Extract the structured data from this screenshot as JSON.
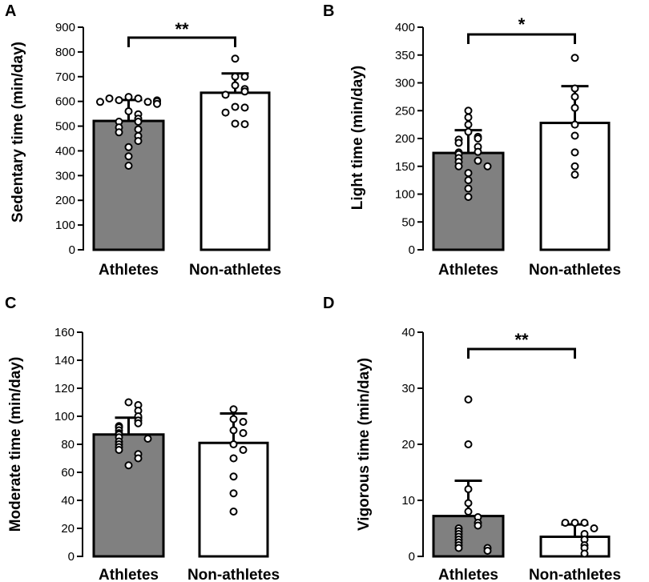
{
  "chart_data": [
    {
      "panel": "A",
      "type": "bar",
      "ylabel": "Sedentary time (min/day)",
      "ylim": [
        0,
        900
      ],
      "yticks": [
        0,
        100,
        200,
        300,
        400,
        500,
        600,
        700,
        800,
        900
      ],
      "categories": [
        "Athletes",
        "Non-athletes"
      ],
      "values": [
        521,
        635
      ],
      "errors": [
        85,
        78
      ],
      "bar_colors": [
        "#808080",
        "#ffffff"
      ],
      "points": [
        [
          618,
          612,
          605,
          598,
          612,
          604,
          598,
          600,
          590,
          560,
          548,
          530,
          518,
          518,
          495,
          487,
          475,
          460,
          440,
          415,
          378,
          340
        ],
        [
          773,
          700,
          700,
          665,
          650,
          640,
          627,
          578,
          575,
          555,
          510,
          508
        ]
      ],
      "significance": "**"
    },
    {
      "panel": "B",
      "type": "bar",
      "ylabel": "Light time (min/day)",
      "ylim": [
        0,
        400
      ],
      "yticks": [
        0,
        50,
        100,
        150,
        200,
        250,
        300,
        350,
        400
      ],
      "categories": [
        "Athletes",
        "Non-athletes"
      ],
      "values": [
        174,
        228
      ],
      "errors": [
        41,
        66
      ],
      "bar_colors": [
        "#808080",
        "#ffffff"
      ],
      "points": [
        [
          250,
          238,
          225,
          212,
          203,
          200,
          198,
          192,
          185,
          176,
          175,
          172,
          165,
          160,
          158,
          150,
          150,
          138,
          125,
          110,
          95
        ],
        [
          345,
          290,
          275,
          255,
          225,
          205,
          175,
          150,
          135
        ]
      ],
      "significance": "*"
    },
    {
      "panel": "C",
      "type": "bar",
      "ylabel": "Moderate time (min/day)",
      "ylim": [
        0,
        160
      ],
      "yticks": [
        0,
        20,
        40,
        60,
        80,
        100,
        120,
        140,
        160
      ],
      "categories": [
        "Athletes",
        "Non-athletes"
      ],
      "values": [
        87,
        81
      ],
      "errors": [
        12,
        21
      ],
      "bar_colors": [
        "#808080",
        "#ffffff"
      ],
      "points": [
        [
          110,
          108,
          104,
          100,
          97,
          95,
          93,
          92,
          90,
          88,
          87,
          85,
          84,
          82,
          80,
          78,
          76,
          73,
          70,
          65
        ],
        [
          105,
          98,
          96,
          90,
          88,
          80,
          76,
          70,
          57,
          45,
          32
        ]
      ],
      "significance": ""
    },
    {
      "panel": "D",
      "type": "bar",
      "ylabel": "Vigorous time (min/day)",
      "ylim": [
        0,
        40
      ],
      "yticks": [
        0,
        10,
        20,
        30,
        40
      ],
      "categories": [
        "Athletes",
        "Non-athletes"
      ],
      "values": [
        7.2,
        3.5
      ],
      "errors": [
        6.3,
        2.2
      ],
      "bar_colors": [
        "#808080",
        "#ffffff"
      ],
      "points": [
        [
          28,
          20,
          12,
          9.5,
          8,
          7,
          6,
          5.5,
          5,
          4.5,
          4,
          3.5,
          3,
          2.5,
          2,
          1.5,
          1.5,
          1
        ],
        [
          6,
          6,
          6,
          5,
          4,
          3,
          2,
          1.5,
          0.5
        ]
      ],
      "significance": "**"
    }
  ]
}
